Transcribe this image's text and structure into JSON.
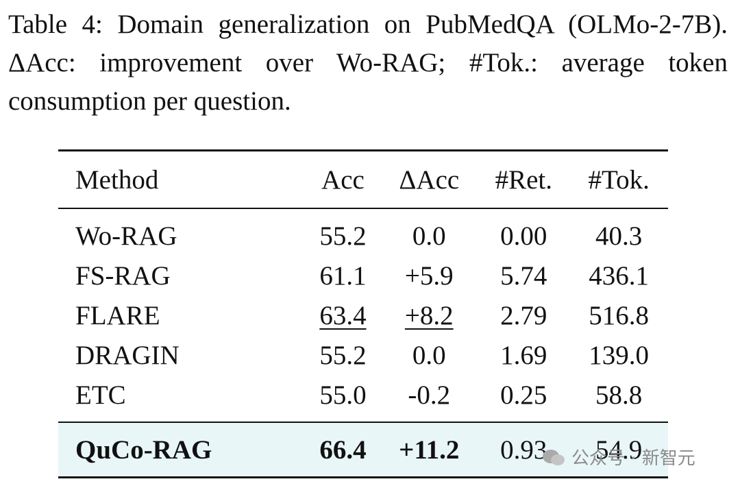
{
  "caption": "Table 4: Domain generalization on PubMedQA (OLMo-2-7B). ΔAcc: improvement over Wo-RAG; #Tok.: average token consumption per question.",
  "table": {
    "header": [
      "Method",
      "Acc",
      "ΔAcc",
      "#Ret.",
      "#Tok."
    ],
    "rows": [
      [
        "Wo-RAG",
        "55.2",
        "0.0",
        "0.00",
        "40.3"
      ],
      [
        "FS-RAG",
        "61.1",
        "+5.9",
        "5.74",
        "436.1"
      ],
      [
        "FLARE",
        "63.4",
        "+8.2",
        "2.79",
        "516.8"
      ],
      [
        "DRAGIN",
        "55.2",
        "0.0",
        "1.69",
        "139.0"
      ],
      [
        "ETC",
        "55.0",
        "-0.2",
        "0.25",
        "58.8"
      ],
      [
        "QuCo-RAG",
        "66.4",
        "+11.2",
        "0.93",
        "54.9"
      ]
    ]
  },
  "watermark": "公众号 · 新智元"
}
